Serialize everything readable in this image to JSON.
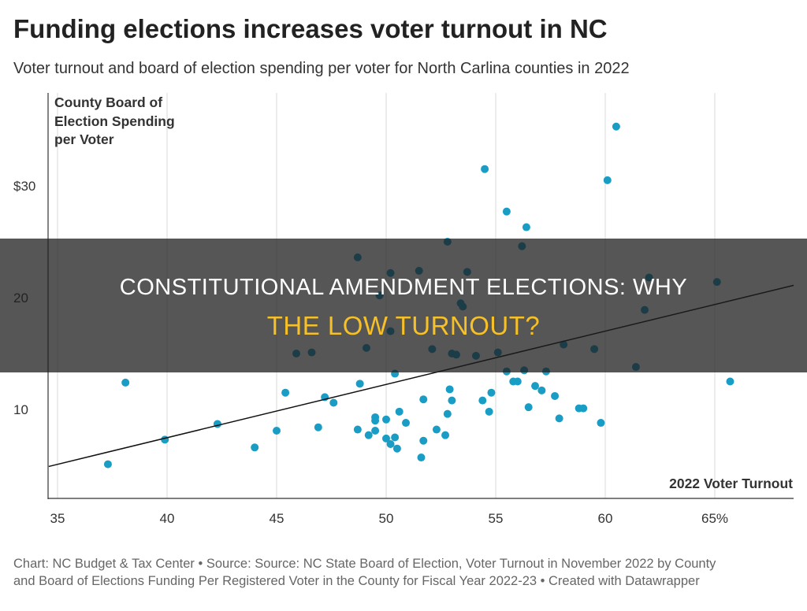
{
  "title": "Funding elections increases voter turnout in NC",
  "subtitle": "Voter turnout and board of election spending per voter for North Carlina counties in 2022",
  "footer_line1": "Chart: NC Budget & Tax Center • Source: Source: NC State Board of Election, Voter Turnout in November 2022 by County",
  "footer_line2": "and Board of Elections Funding Per Registered Voter in the County for Fiscal Year 2022-23 • Created with Datawrapper",
  "banner": {
    "line1": "CONSTITUTIONAL AMENDMENT ELECTIONS: WHY",
    "line2": "THE LOW TURNOUT?"
  },
  "colors": {
    "points": "#1a9dc4",
    "trendline": "#111111",
    "banner_highlight": "#f6c028"
  },
  "chart_data": {
    "type": "scatter",
    "xlabel": "2022 Voter Turnout",
    "ylabel_lines": [
      "County Board of",
      "Election Spending",
      "per Voter"
    ],
    "xlim": [
      34.6,
      68.6
    ],
    "ylim": [
      2,
      38.3
    ],
    "x_ticks": [
      35,
      40,
      45,
      50,
      55,
      60,
      65
    ],
    "x_tick_labels": [
      "35",
      "40",
      "45",
      "50",
      "55",
      "60",
      "65%"
    ],
    "y_ticks": [
      10,
      20,
      30
    ],
    "y_tick_labels": [
      "10",
      "20",
      "$30"
    ],
    "grid": "vertical",
    "trendline": [
      [
        34.6,
        4.9
      ],
      [
        68.6,
        21.1
      ]
    ],
    "points": [
      [
        37.3,
        5.1
      ],
      [
        38.1,
        12.4
      ],
      [
        39.9,
        7.3
      ],
      [
        42.3,
        8.7
      ],
      [
        44.0,
        6.6
      ],
      [
        45.0,
        8.1
      ],
      [
        45.4,
        11.5
      ],
      [
        45.9,
        15.0
      ],
      [
        46.6,
        15.1
      ],
      [
        46.9,
        8.4
      ],
      [
        47.2,
        11.1
      ],
      [
        47.6,
        10.6
      ],
      [
        48.7,
        23.6
      ],
      [
        49.1,
        15.5
      ],
      [
        48.8,
        12.3
      ],
      [
        48.7,
        8.2
      ],
      [
        49.2,
        7.7
      ],
      [
        49.5,
        8.1
      ],
      [
        49.5,
        9.3
      ],
      [
        49.5,
        9.0
      ],
      [
        49.7,
        20.2
      ],
      [
        50.0,
        7.4
      ],
      [
        50.0,
        9.1
      ],
      [
        50.2,
        6.9
      ],
      [
        50.2,
        22.2
      ],
      [
        50.2,
        17.0
      ],
      [
        50.4,
        13.2
      ],
      [
        50.4,
        7.5
      ],
      [
        50.5,
        6.5
      ],
      [
        50.6,
        9.8
      ],
      [
        50.9,
        8.8
      ],
      [
        51.5,
        22.4
      ],
      [
        51.6,
        5.7
      ],
      [
        51.7,
        10.9
      ],
      [
        51.7,
        7.2
      ],
      [
        52.1,
        15.4
      ],
      [
        52.3,
        8.2
      ],
      [
        52.7,
        7.7
      ],
      [
        52.8,
        25.0
      ],
      [
        52.8,
        9.6
      ],
      [
        52.9,
        11.8
      ],
      [
        53.0,
        10.8
      ],
      [
        53.0,
        15.0
      ],
      [
        53.2,
        14.9
      ],
      [
        53.4,
        19.5
      ],
      [
        53.5,
        19.2
      ],
      [
        53.7,
        22.3
      ],
      [
        54.1,
        14.8
      ],
      [
        54.4,
        10.8
      ],
      [
        54.5,
        31.5
      ],
      [
        54.7,
        9.8
      ],
      [
        54.8,
        11.5
      ],
      [
        55.1,
        15.1
      ],
      [
        55.5,
        27.7
      ],
      [
        55.5,
        13.4
      ],
      [
        55.8,
        12.5
      ],
      [
        56.0,
        12.5
      ],
      [
        56.2,
        24.6
      ],
      [
        56.3,
        13.5
      ],
      [
        56.4,
        26.3
      ],
      [
        56.5,
        10.2
      ],
      [
        56.8,
        12.1
      ],
      [
        57.1,
        11.7
      ],
      [
        57.3,
        13.4
      ],
      [
        57.7,
        11.2
      ],
      [
        57.9,
        9.2
      ],
      [
        58.1,
        15.8
      ],
      [
        59.5,
        15.4
      ],
      [
        58.8,
        10.1
      ],
      [
        59.0,
        10.1
      ],
      [
        59.8,
        8.8
      ],
      [
        60.1,
        30.5
      ],
      [
        60.5,
        35.3
      ],
      [
        61.4,
        13.8
      ],
      [
        61.8,
        18.9
      ],
      [
        62.0,
        21.8
      ],
      [
        65.1,
        21.4
      ],
      [
        65.7,
        12.5
      ]
    ]
  }
}
